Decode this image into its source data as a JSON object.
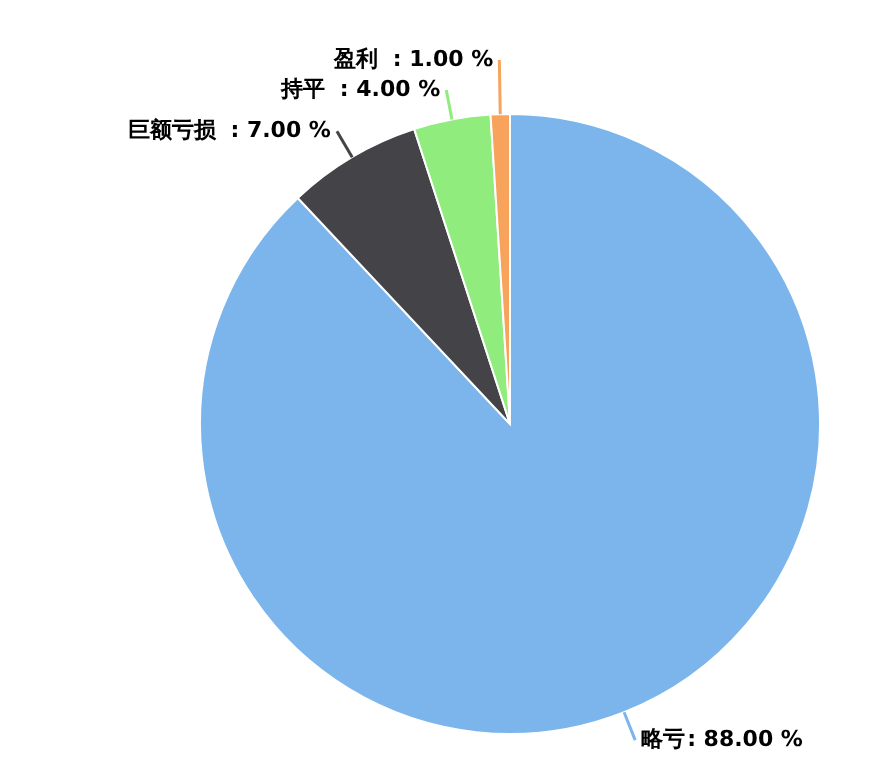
{
  "chart_data": {
    "type": "pie",
    "categories": [
      "略亏",
      "巨额亏损",
      "持平",
      "盈利"
    ],
    "values": [
      88,
      7,
      4,
      1
    ],
    "colors": [
      "#7cb5ec",
      "#434348",
      "#90ed7d",
      "#f7a35c"
    ],
    "value_labels": [
      ": 88.00 %",
      ": 7.00 %",
      ": 4.00 %",
      ": 1.00 %"
    ],
    "legend": false
  }
}
